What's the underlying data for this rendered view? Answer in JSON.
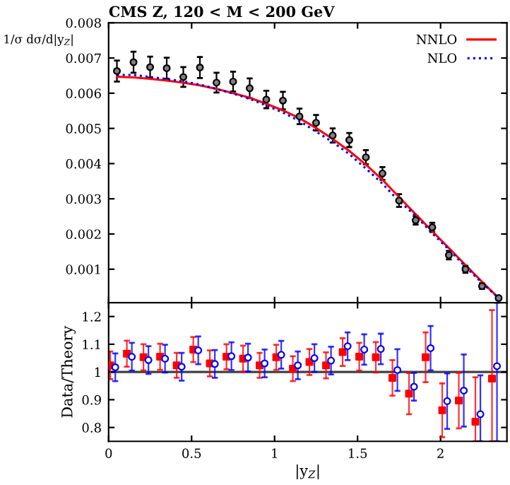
{
  "chart_data": [
    {
      "type": "line",
      "title": "CMS Z, 120 < M < 200 GeV",
      "ylabel": "1/σ dσ/d|y$_{Z}$|",
      "xlim": [
        0,
        2.4
      ],
      "xticks": [
        {
          "value": 0,
          "label": null
        },
        {
          "value": 0.5,
          "label": null
        },
        {
          "value": 1,
          "label": null
        },
        {
          "value": 1.5,
          "label": null
        },
        {
          "value": 2,
          "label": null
        }
      ],
      "ylim": [
        5e-05,
        0.008
      ],
      "yticks": [
        0.001,
        0.002,
        0.003,
        0.004,
        0.005,
        0.006,
        0.007,
        0.008
      ],
      "tick_labels": "y",
      "legend": "top right",
      "series": [
        {
          "type": "scatter",
          "color": "#000000",
          "marker": "circle",
          "x": [
            0.05,
            0.15,
            0.25,
            0.35,
            0.45,
            0.55,
            0.65,
            0.75,
            0.85,
            0.95,
            1.05,
            1.15,
            1.25,
            1.35,
            1.45,
            1.55,
            1.65,
            1.75,
            1.85,
            1.95,
            2.05,
            2.15,
            2.25,
            2.35
          ],
          "values": [
            0.00663,
            0.00688,
            0.00674,
            0.00671,
            0.00646,
            0.00673,
            0.0063,
            0.00633,
            0.00614,
            0.00582,
            0.00579,
            0.00534,
            0.00516,
            0.0048,
            0.00467,
            0.00418,
            0.00372,
            0.00295,
            0.00239,
            0.00219,
            0.0014,
            0.001,
            0.00052,
            0.00018
          ],
          "errors": [
            0.0003,
            0.0003,
            0.0003,
            0.0003,
            0.00028,
            0.0003,
            0.00028,
            0.00028,
            0.00028,
            0.00025,
            0.00025,
            0.00022,
            0.00022,
            0.0002,
            0.0002,
            0.0002,
            0.00018,
            0.00018,
            0.00012,
            0.00013,
            0.00012,
            0.0001,
            8e-05,
            5e-05
          ]
        },
        {
          "name": "NNLO",
          "color": "#ff0000",
          "line_style": "solid",
          "marker": "none",
          "x": [
            0.05,
            0.15,
            0.25,
            0.35,
            0.45,
            0.55,
            0.65,
            0.75,
            0.85,
            0.95,
            1.05,
            1.15,
            1.25,
            1.35,
            1.45,
            1.55,
            1.65,
            1.75,
            1.85,
            1.95,
            2.05,
            2.15,
            2.25,
            2.35
          ],
          "values": [
            0.00647,
            0.00645,
            0.00641,
            0.00636,
            0.0063,
            0.00622,
            0.00612,
            0.006,
            0.00587,
            0.0057,
            0.00551,
            0.00529,
            0.00501,
            0.0047,
            0.00436,
            0.00397,
            0.00354,
            0.00305,
            0.00256,
            0.00208,
            0.0016,
            0.00112,
            0.00064,
            0.00018
          ]
        },
        {
          "name": "NLO",
          "color": "#0000ff",
          "line_style": "dotted",
          "marker": "none",
          "x": [
            0.05,
            0.15,
            0.25,
            0.35,
            0.45,
            0.55,
            0.65,
            0.75,
            0.85,
            0.95,
            1.05,
            1.15,
            1.25,
            1.35,
            1.45,
            1.55,
            1.65,
            1.75,
            1.85,
            1.95,
            2.05,
            2.15,
            2.25,
            2.35
          ],
          "values": [
            0.00652,
            0.00652,
            0.00646,
            0.0064,
            0.00634,
            0.00624,
            0.00612,
            0.00599,
            0.00584,
            0.00565,
            0.00545,
            0.00521,
            0.00491,
            0.00461,
            0.00427,
            0.00386,
            0.00343,
            0.00293,
            0.00252,
            0.00202,
            0.00156,
            0.00107,
            0.00061,
            0.00018
          ]
        }
      ]
    },
    {
      "type": "scatter",
      "xlabel": "|y$_{Z}$|",
      "ylabel": "Data/Theory",
      "xlim": [
        0,
        2.4
      ],
      "xticks": [
        0,
        0.5,
        1,
        1.5,
        2
      ],
      "ylim": [
        0.75,
        1.25
      ],
      "yticks": [
        0.8,
        0.9,
        1,
        1.1,
        1.2
      ],
      "ref_lines": [
        {
          "axis": "y",
          "value": 1,
          "color": "#404040"
        }
      ],
      "series": [
        {
          "color": "#ff0000",
          "marker": "square",
          "x": [
            0.01,
            0.11,
            0.21,
            0.31,
            0.41,
            0.51,
            0.61,
            0.71,
            0.81,
            0.91,
            1.01,
            1.11,
            1.21,
            1.31,
            1.41,
            1.51,
            1.61,
            1.71,
            1.81,
            1.91,
            2.01,
            2.11,
            2.21,
            2.31
          ],
          "values": [
            1.024,
            1.066,
            1.053,
            1.055,
            1.024,
            1.081,
            1.031,
            1.055,
            1.048,
            1.024,
            1.053,
            1.012,
            1.036,
            1.024,
            1.072,
            1.055,
            1.053,
            0.979,
            0.922,
            1.053,
            0.862,
            0.897,
            0.821,
            0.976
          ],
          "errors": [
            0.05,
            0.047,
            0.047,
            0.047,
            0.045,
            0.045,
            0.047,
            0.045,
            0.047,
            0.045,
            0.045,
            0.045,
            0.047,
            0.047,
            0.05,
            0.05,
            0.055,
            0.064,
            0.074,
            0.09,
            0.097,
            0.1,
            [
              0.75,
              0.981
            ],
            [
              0.75,
              1.223
            ]
          ]
        },
        {
          "color": "#0000ff",
          "marker": "circle",
          "x": [
            0.04,
            0.14,
            0.24,
            0.34,
            0.44,
            0.54,
            0.64,
            0.74,
            0.84,
            0.94,
            1.04,
            1.14,
            1.24,
            1.34,
            1.44,
            1.54,
            1.64,
            1.74,
            1.84,
            1.94,
            2.04,
            2.14,
            2.24,
            2.34
          ],
          "values": [
            1.017,
            1.055,
            1.043,
            1.048,
            1.019,
            1.078,
            1.029,
            1.057,
            1.052,
            1.031,
            1.062,
            1.024,
            1.05,
            1.041,
            1.093,
            1.081,
            1.083,
            1.007,
            0.947,
            1.086,
            0.895,
            0.933,
            0.848,
            1.021
          ],
          "errors": [
            0.05,
            0.05,
            0.05,
            0.05,
            0.05,
            0.05,
            0.05,
            0.05,
            0.05,
            0.05,
            0.05,
            0.05,
            0.05,
            0.05,
            0.05,
            0.055,
            0.055,
            0.075,
            0.05,
            0.08,
            0.1,
            0.13,
            [
              0.75,
              0.988
            ],
            [
              0.75,
              1.25
            ]
          ]
        }
      ]
    }
  ]
}
